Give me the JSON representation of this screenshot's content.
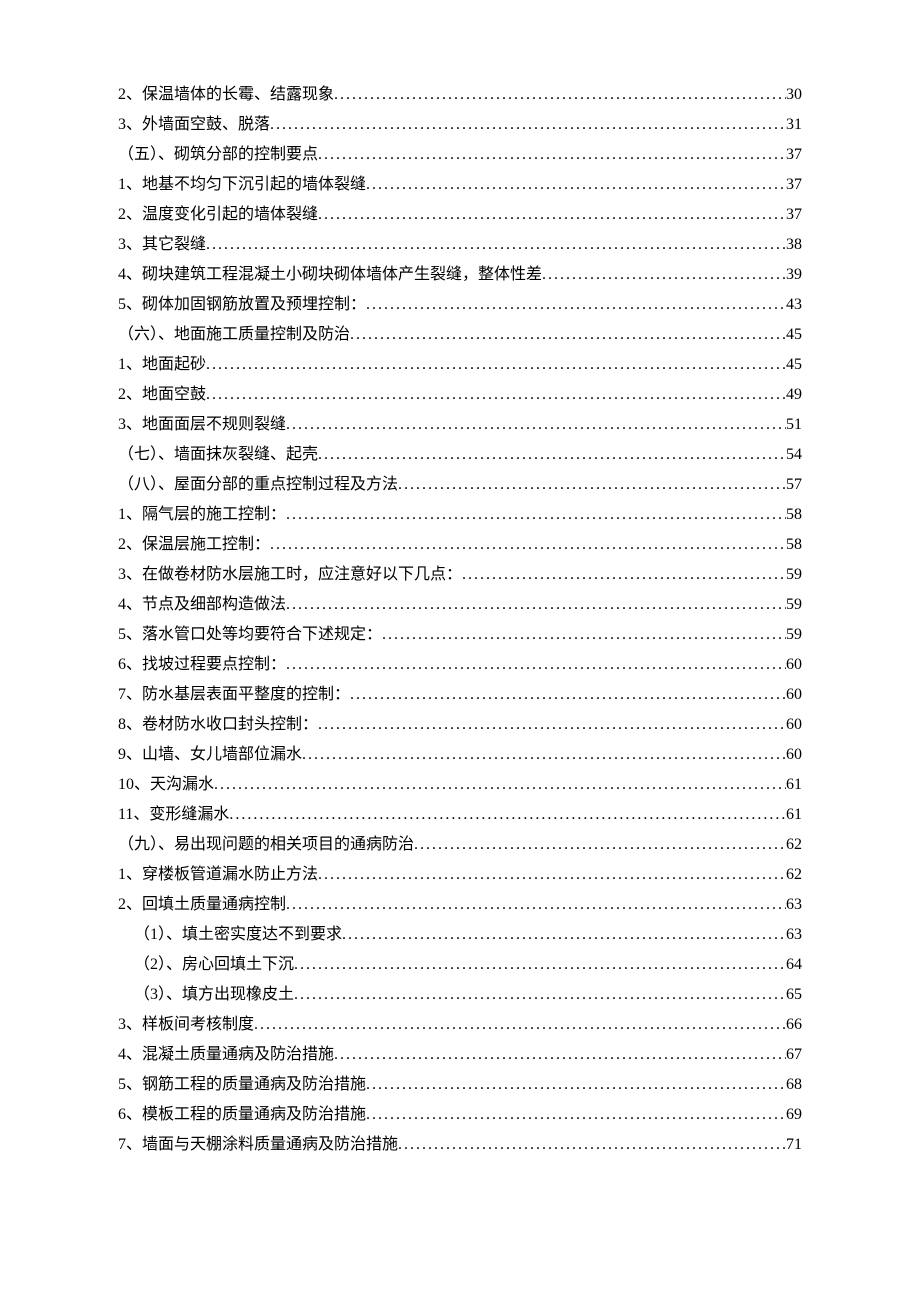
{
  "toc": {
    "font_size": 16,
    "line_height": 30,
    "text_color": "#000000",
    "background_color": "#ffffff",
    "entries": [
      {
        "label": "2、保温墙体的长霉、结露现象",
        "page": "30",
        "indent": 0
      },
      {
        "label": "3、外墙面空鼓、脱落",
        "page": "31",
        "indent": 0
      },
      {
        "label": "（五）、砌筑分部的控制要点",
        "page": "37",
        "indent": 0
      },
      {
        "label": "1、地基不均匀下沉引起的墙体裂缝 ",
        "page": "37",
        "indent": 0
      },
      {
        "label": "2、温度变化引起的墙体裂缝 ",
        "page": "37",
        "indent": 0
      },
      {
        "label": "3、其它裂缝 ",
        "page": "38",
        "indent": 0
      },
      {
        "label": "4、砌块建筑工程混凝土小砌块砌体墙体产生裂缝，整体性差",
        "page": "39",
        "indent": 0
      },
      {
        "label": "5、砌体加固钢筋放置及预埋控制：",
        "page": "43",
        "indent": 0
      },
      {
        "label": "（六）、地面施工质量控制及防治",
        "page": "45",
        "indent": 0
      },
      {
        "label": "1、地面起砂 ",
        "page": "45",
        "indent": 0
      },
      {
        "label": "2、地面空鼓 ",
        "page": "49",
        "indent": 0
      },
      {
        "label": "3、地面面层不规则裂缝 ",
        "page": "51",
        "indent": 0
      },
      {
        "label": "（七）、墙面抹灰裂缝、起壳",
        "page": "54",
        "indent": 0
      },
      {
        "label": "（八）、屋面分部的重点控制过程及方法",
        "page": "57",
        "indent": 0
      },
      {
        "label": "1、隔气层的施工控制：",
        "page": "58",
        "indent": 0
      },
      {
        "label": "2、保温层施工控制：",
        "page": "58",
        "indent": 0
      },
      {
        "label": "3、在做卷材防水层施工时，应注意好以下几点：",
        "page": "59",
        "indent": 0
      },
      {
        "label": "4、节点及细部构造做法",
        "page": "59",
        "indent": 0
      },
      {
        "label": "5、落水管口处等均要符合下述规定：",
        "page": "59",
        "indent": 0
      },
      {
        "label": "6、找坡过程要点控制：",
        "page": "60",
        "indent": 0
      },
      {
        "label": "7、防水基层表面平整度的控制：",
        "page": "60",
        "indent": 0
      },
      {
        "label": "8、卷材防水收口封头控制：",
        "page": "60",
        "indent": 0
      },
      {
        "label": "9、山墙、女儿墙部位漏水",
        "page": "60",
        "indent": 0
      },
      {
        "label": "10、天沟漏水 ",
        "page": "61",
        "indent": 0
      },
      {
        "label": "11、变形缝漏水 ",
        "page": "61",
        "indent": 0
      },
      {
        "label": "（九）、易出现问题的相关项目的通病防治",
        "page": "62",
        "indent": 0
      },
      {
        "label": "1、穿楼板管道漏水防止方法",
        "page": "62",
        "indent": 0
      },
      {
        "label": "2、回填土质量通病控制",
        "page": "63",
        "indent": 0
      },
      {
        "label": "（1）、填土密实度达不到要求",
        "page": "63",
        "indent": 1
      },
      {
        "label": "（2）、房心回填土下沉",
        "page": "64",
        "indent": 1
      },
      {
        "label": "（3）、填方出现橡皮土",
        "page": "65",
        "indent": 1
      },
      {
        "label": "3、样板间考核制度",
        "page": ".66",
        "indent": 0
      },
      {
        "label": "4、混凝土质量通病及防治措施 ",
        "page": "67",
        "indent": 0
      },
      {
        "label": "5、钢筋工程的质量通病及防治措施",
        "page": "68",
        "indent": 0
      },
      {
        "label": "6、模板工程的质量通病及防治措施",
        "page": "69",
        "indent": 0
      },
      {
        "label": "7、墙面与天棚涂料质量通病及防治措施",
        "page": "71",
        "indent": 0
      }
    ]
  }
}
